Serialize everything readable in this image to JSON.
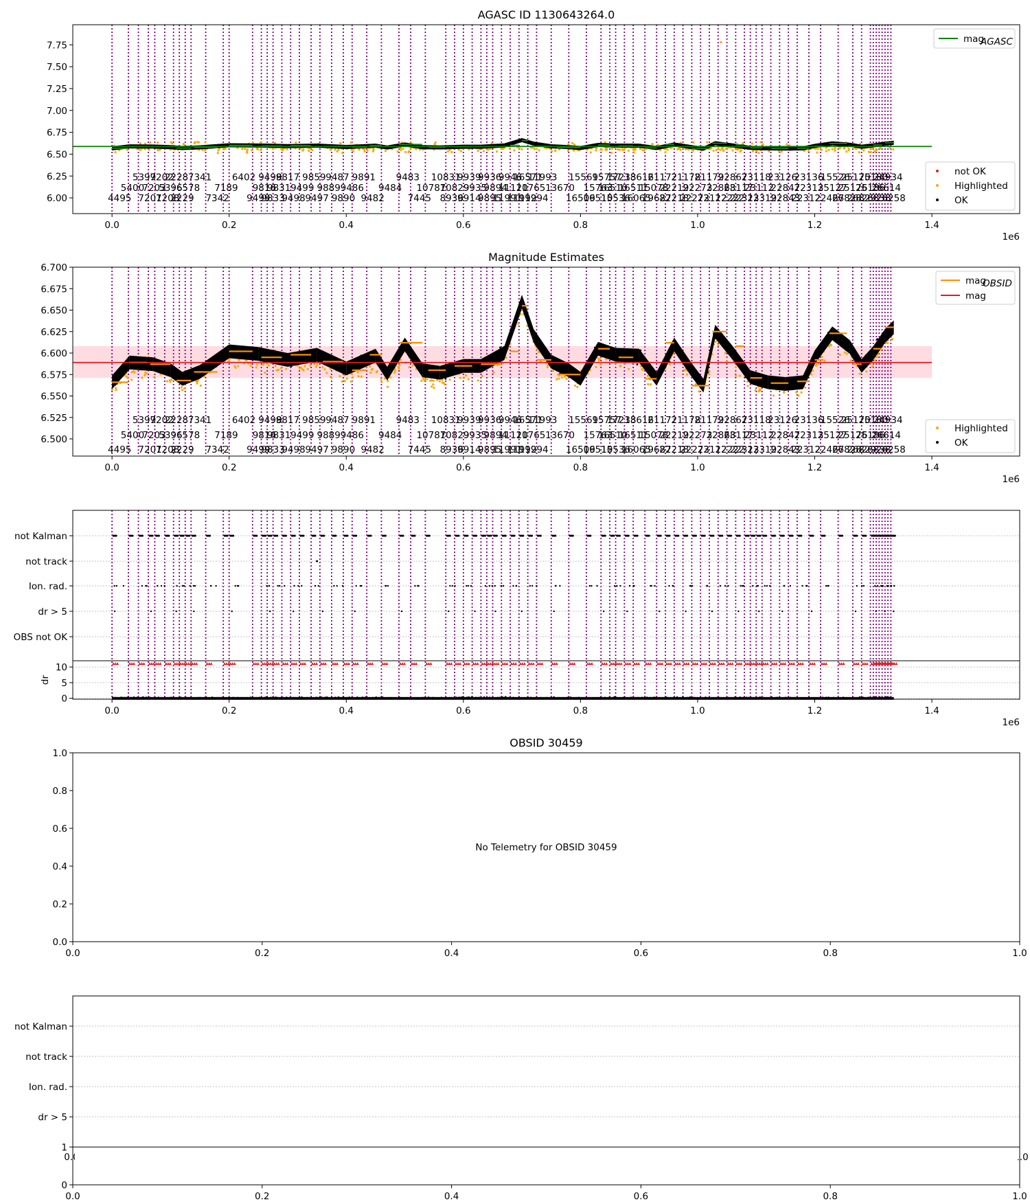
{
  "figure": {
    "background": "#ffffff"
  },
  "colors": {
    "obsid_line": "#800080",
    "mag_agasc": "#008000",
    "mag_obsid": "#ff8c00",
    "mag_mean": "#e41a1c",
    "band": "#ffc0cb",
    "not_ok": "#e41a1c",
    "highlighted": "#ffa500",
    "ok": "#000000",
    "grid": "#b0b0b0"
  },
  "obsid_x": [
    0,
    0.028,
    0.045,
    0.062,
    0.073,
    0.09,
    0.105,
    0.115,
    0.125,
    0.135,
    0.16,
    0.19,
    0.2,
    0.24,
    0.255,
    0.265,
    0.275,
    0.29,
    0.305,
    0.32,
    0.34,
    0.355,
    0.375,
    0.395,
    0.41,
    0.435,
    0.46,
    0.49,
    0.51,
    0.535,
    0.57,
    0.585,
    0.6,
    0.615,
    0.63,
    0.64,
    0.65,
    0.665,
    0.68,
    0.695,
    0.71,
    0.725,
    0.75,
    0.78,
    0.81,
    0.835,
    0.85,
    0.86,
    0.875,
    0.89,
    0.91,
    0.93,
    0.945,
    0.96,
    0.975,
    0.99,
    1.005,
    1.02,
    1.035,
    1.05,
    1.065,
    1.08,
    1.09,
    1.1,
    1.11,
    1.125,
    1.14,
    1.155,
    1.17,
    1.19,
    1.21,
    1.24,
    1.265,
    1.28,
    1.295,
    1.3,
    1.305,
    1.31,
    1.315,
    1.32,
    1.325,
    1.33
  ],
  "obsid_labels": {
    "row1": [
      {
        "x": 0.055,
        "t": "5399"
      },
      {
        "x": 0.085,
        "t": "7202"
      },
      {
        "x": 0.11,
        "t": "2228"
      },
      {
        "x": 0.15,
        "t": "7341"
      },
      {
        "x": 0.225,
        "t": "6402"
      },
      {
        "x": 0.27,
        "t": "9498"
      },
      {
        "x": 0.3,
        "t": "9817"
      },
      {
        "x": 0.345,
        "t": "9859"
      },
      {
        "x": 0.385,
        "t": "9487"
      },
      {
        "x": 0.43,
        "t": "9891"
      },
      {
        "x": 0.505,
        "t": "9483"
      },
      {
        "x": 0.57,
        "t": "10831"
      },
      {
        "x": 0.61,
        "t": "9939"
      },
      {
        "x": 0.645,
        "t": "9936"
      },
      {
        "x": 0.68,
        "t": "9946"
      },
      {
        "x": 0.71,
        "t": "16571"
      },
      {
        "x": 0.735,
        "t": "11993"
      },
      {
        "x": 0.805,
        "t": "15569"
      },
      {
        "x": 0.845,
        "t": "15757"
      },
      {
        "x": 0.87,
        "t": "17233"
      },
      {
        "x": 0.9,
        "t": "18616"
      },
      {
        "x": 0.94,
        "t": "21172"
      },
      {
        "x": 0.98,
        "t": "21178"
      },
      {
        "x": 1.02,
        "t": "21179"
      },
      {
        "x": 1.06,
        "t": "22867"
      },
      {
        "x": 1.1,
        "t": "23118"
      },
      {
        "x": 1.145,
        "t": "23126"
      },
      {
        "x": 1.19,
        "t": "23136"
      },
      {
        "x": 1.235,
        "t": "15526"
      },
      {
        "x": 1.27,
        "t": "25170"
      },
      {
        "x": 1.3,
        "t": "25180"
      },
      {
        "x": 1.325,
        "t": "24934"
      }
    ],
    "row2": [
      {
        "x": 0.035,
        "t": "5400"
      },
      {
        "x": 0.072,
        "t": "7203"
      },
      {
        "x": 0.1,
        "t": "5396"
      },
      {
        "x": 0.13,
        "t": "6578"
      },
      {
        "x": 0.195,
        "t": "7189"
      },
      {
        "x": 0.26,
        "t": "9816"
      },
      {
        "x": 0.285,
        "t": "9831"
      },
      {
        "x": 0.325,
        "t": "9499"
      },
      {
        "x": 0.37,
        "t": "9889"
      },
      {
        "x": 0.41,
        "t": "9486"
      },
      {
        "x": 0.475,
        "t": "9484"
      },
      {
        "x": 0.545,
        "t": "10787"
      },
      {
        "x": 0.585,
        "t": "10829"
      },
      {
        "x": 0.62,
        "t": "9935"
      },
      {
        "x": 0.655,
        "t": "9894"
      },
      {
        "x": 0.685,
        "t": "11120"
      },
      {
        "x": 0.715,
        "t": "11765"
      },
      {
        "x": 0.765,
        "t": "13670"
      },
      {
        "x": 0.83,
        "t": "15763"
      },
      {
        "x": 0.855,
        "t": "16510"
      },
      {
        "x": 0.89,
        "t": "16511"
      },
      {
        "x": 0.925,
        "t": "15078"
      },
      {
        "x": 0.96,
        "t": "22219"
      },
      {
        "x": 1.0,
        "t": "22273"
      },
      {
        "x": 1.04,
        "t": "22868"
      },
      {
        "x": 1.07,
        "t": "23117"
      },
      {
        "x": 1.105,
        "t": "23112"
      },
      {
        "x": 1.15,
        "t": "22847"
      },
      {
        "x": 1.19,
        "t": "22313"
      },
      {
        "x": 1.23,
        "t": "25127"
      },
      {
        "x": 1.265,
        "t": "25176"
      },
      {
        "x": 1.295,
        "t": "25186"
      },
      {
        "x": 1.322,
        "t": "26614"
      }
    ],
    "row3": [
      {
        "x": 0.013,
        "t": "4495"
      },
      {
        "x": 0.065,
        "t": "7201"
      },
      {
        "x": 0.095,
        "t": "7208"
      },
      {
        "x": 0.12,
        "t": "2229"
      },
      {
        "x": 0.18,
        "t": "7342"
      },
      {
        "x": 0.25,
        "t": "9499"
      },
      {
        "x": 0.275,
        "t": "9833"
      },
      {
        "x": 0.31,
        "t": "9498"
      },
      {
        "x": 0.35,
        "t": "9497"
      },
      {
        "x": 0.395,
        "t": "9890"
      },
      {
        "x": 0.445,
        "t": "9482"
      },
      {
        "x": 0.525,
        "t": "7445"
      },
      {
        "x": 0.58,
        "t": "8936"
      },
      {
        "x": 0.61,
        "t": "9914"
      },
      {
        "x": 0.645,
        "t": "9895"
      },
      {
        "x": 0.675,
        "t": "11991"
      },
      {
        "x": 0.7,
        "t": "11992"
      },
      {
        "x": 0.72,
        "t": "11994"
      },
      {
        "x": 0.8,
        "t": "16509"
      },
      {
        "x": 0.83,
        "t": "16510"
      },
      {
        "x": 0.86,
        "t": "15536"
      },
      {
        "x": 0.895,
        "t": "16065"
      },
      {
        "x": 0.93,
        "t": "19687"
      },
      {
        "x": 0.96,
        "t": "22218"
      },
      {
        "x": 0.995,
        "t": "22273"
      },
      {
        "x": 1.025,
        "t": "22112"
      },
      {
        "x": 1.055,
        "t": "22222"
      },
      {
        "x": 1.08,
        "t": "22313"
      },
      {
        "x": 1.11,
        "t": "22319"
      },
      {
        "x": 1.15,
        "t": "22843"
      },
      {
        "x": 1.185,
        "t": "22312"
      },
      {
        "x": 1.225,
        "t": "22467"
      },
      {
        "x": 1.255,
        "t": "26828"
      },
      {
        "x": 1.28,
        "t": "26829"
      },
      {
        "x": 1.305,
        "t": "26838"
      },
      {
        "x": 1.33,
        "t": "26258"
      }
    ]
  },
  "chart_data": [
    {
      "type": "scatter",
      "title": "AGASC ID 1130643264.0",
      "x_scale_label": "1e6",
      "xlim": [
        -0.067,
        1.55
      ],
      "ylim": [
        5.82,
        7.98
      ],
      "xticks": [
        {
          "v": 0.0,
          "t": "0.0"
        },
        {
          "v": 0.2,
          "t": "0.2"
        },
        {
          "v": 0.4,
          "t": "0.4"
        },
        {
          "v": 0.6,
          "t": "0.6"
        },
        {
          "v": 0.8,
          "t": "0.8"
        },
        {
          "v": 1.0,
          "t": "1.0"
        },
        {
          "v": 1.2,
          "t": "1.2"
        },
        {
          "v": 1.4,
          "t": "1.4"
        }
      ],
      "yticks": [
        {
          "v": 6.0,
          "t": "6.00"
        },
        {
          "v": 6.25,
          "t": "6.25"
        },
        {
          "v": 6.5,
          "t": "6.50"
        },
        {
          "v": 6.75,
          "t": "6.75"
        },
        {
          "v": 7.0,
          "t": "7.00"
        },
        {
          "v": 7.25,
          "t": "7.25"
        },
        {
          "v": 7.5,
          "t": "7.50"
        },
        {
          "v": 7.75,
          "t": "7.75"
        }
      ],
      "mag_agasc": 6.588,
      "outlier": {
        "x": 1.04,
        "y": 7.78
      },
      "legend_top": [
        {
          "label": "mag",
          "sub": "AGASC"
        }
      ],
      "legend_bottom": [
        "not OK",
        "Highlighted",
        "OK"
      ]
    },
    {
      "type": "scatter",
      "title": "Magnitude Estimates",
      "x_scale_label": "1e6",
      "xlim": [
        -0.067,
        1.55
      ],
      "ylim": [
        6.48,
        6.7
      ],
      "xticks": [
        {
          "v": 0.0,
          "t": "0.0"
        },
        {
          "v": 0.2,
          "t": "0.2"
        },
        {
          "v": 0.4,
          "t": "0.4"
        },
        {
          "v": 0.6,
          "t": "0.6"
        },
        {
          "v": 0.8,
          "t": "0.8"
        },
        {
          "v": 1.0,
          "t": "1.0"
        },
        {
          "v": 1.2,
          "t": "1.2"
        },
        {
          "v": 1.4,
          "t": "1.4"
        }
      ],
      "yticks": [
        {
          "v": 6.5,
          "t": "6.500"
        },
        {
          "v": 6.525,
          "t": "6.525"
        },
        {
          "v": 6.55,
          "t": "6.550"
        },
        {
          "v": 6.575,
          "t": "6.575"
        },
        {
          "v": 6.6,
          "t": "6.600"
        },
        {
          "v": 6.625,
          "t": "6.625"
        },
        {
          "v": 6.65,
          "t": "6.650"
        },
        {
          "v": 6.675,
          "t": "6.675"
        },
        {
          "v": 6.7,
          "t": "6.700"
        }
      ],
      "mag": 6.589,
      "band": [
        6.571,
        6.608
      ],
      "legend_top": [
        {
          "label": "mag",
          "sub": "OBSID"
        },
        {
          "label": "mag",
          "sub": ""
        }
      ],
      "legend_bottom": [
        "Highlighted",
        "OK"
      ],
      "mag_profile": [
        [
          0.0,
          6.566
        ],
        [
          0.03,
          6.589
        ],
        [
          0.07,
          6.587
        ],
        [
          0.1,
          6.58
        ],
        [
          0.12,
          6.57
        ],
        [
          0.15,
          6.578
        ],
        [
          0.2,
          6.602
        ],
        [
          0.25,
          6.599
        ],
        [
          0.3,
          6.592
        ],
        [
          0.35,
          6.598
        ],
        [
          0.4,
          6.582
        ],
        [
          0.45,
          6.597
        ],
        [
          0.47,
          6.576
        ],
        [
          0.5,
          6.61
        ],
        [
          0.53,
          6.58
        ],
        [
          0.56,
          6.577
        ],
        [
          0.6,
          6.585
        ],
        [
          0.63,
          6.585
        ],
        [
          0.67,
          6.6
        ],
        [
          0.7,
          6.66
        ],
        [
          0.72,
          6.62
        ],
        [
          0.75,
          6.59
        ],
        [
          0.78,
          6.58
        ],
        [
          0.8,
          6.57
        ],
        [
          0.83,
          6.605
        ],
        [
          0.86,
          6.598
        ],
        [
          0.9,
          6.597
        ],
        [
          0.93,
          6.57
        ],
        [
          0.96,
          6.61
        ],
        [
          0.99,
          6.58
        ],
        [
          1.01,
          6.562
        ],
        [
          1.03,
          6.625
        ],
        [
          1.06,
          6.6
        ],
        [
          1.09,
          6.572
        ],
        [
          1.12,
          6.566
        ],
        [
          1.15,
          6.564
        ],
        [
          1.18,
          6.566
        ],
        [
          1.2,
          6.595
        ],
        [
          1.23,
          6.623
        ],
        [
          1.26,
          6.607
        ],
        [
          1.28,
          6.585
        ],
        [
          1.3,
          6.6
        ],
        [
          1.32,
          6.62
        ],
        [
          1.335,
          6.63
        ]
      ],
      "mag_obsid_segments": [
        [
          0.0,
          0.028,
          6.566
        ],
        [
          0.03,
          0.06,
          6.589
        ],
        [
          0.065,
          0.1,
          6.587
        ],
        [
          0.11,
          0.135,
          6.568
        ],
        [
          0.14,
          0.18,
          6.578
        ],
        [
          0.2,
          0.24,
          6.602
        ],
        [
          0.255,
          0.29,
          6.595
        ],
        [
          0.305,
          0.34,
          6.598
        ],
        [
          0.36,
          0.395,
          6.59
        ],
        [
          0.41,
          0.435,
          6.58
        ],
        [
          0.44,
          0.46,
          6.598
        ],
        [
          0.49,
          0.53,
          6.612
        ],
        [
          0.54,
          0.57,
          6.58
        ],
        [
          0.585,
          0.615,
          6.585
        ],
        [
          0.63,
          0.665,
          6.587
        ],
        [
          0.68,
          0.695,
          6.602
        ],
        [
          0.7,
          0.71,
          6.655
        ],
        [
          0.725,
          0.75,
          6.592
        ],
        [
          0.76,
          0.8,
          6.575
        ],
        [
          0.83,
          0.85,
          6.605
        ],
        [
          0.865,
          0.89,
          6.595
        ],
        [
          0.91,
          0.93,
          6.57
        ],
        [
          0.945,
          0.96,
          6.612
        ],
        [
          0.99,
          1.02,
          6.562
        ],
        [
          1.025,
          1.05,
          6.625
        ],
        [
          1.065,
          1.08,
          6.608
        ],
        [
          1.09,
          1.11,
          6.571
        ],
        [
          1.125,
          1.155,
          6.565
        ],
        [
          1.17,
          1.19,
          6.567
        ],
        [
          1.2,
          1.215,
          6.592
        ],
        [
          1.225,
          1.255,
          6.623
        ],
        [
          1.265,
          1.28,
          6.587
        ],
        [
          1.3,
          1.315,
          6.605
        ],
        [
          1.32,
          1.335,
          6.63
        ]
      ]
    },
    {
      "type": "scatter",
      "title": "",
      "x_scale_label": "1e6",
      "xlim": [
        -0.067,
        1.55
      ],
      "flag_labels": [
        "not Kalman",
        "not track",
        "Ion. rad.",
        "dr > 5",
        "OBS not OK"
      ],
      "dr_ylim": [
        -0.3,
        12
      ],
      "dr_yticks": [
        {
          "v": 0,
          "t": "0"
        },
        {
          "v": 5,
          "t": "5"
        },
        {
          "v": 10,
          "t": "10"
        }
      ],
      "dr_label": "dr",
      "xticks": [
        {
          "v": 0.0,
          "t": "0.0"
        },
        {
          "v": 0.2,
          "t": "0.2"
        },
        {
          "v": 0.4,
          "t": "0.4"
        },
        {
          "v": 0.6,
          "t": "0.6"
        },
        {
          "v": 0.8,
          "t": "0.8"
        },
        {
          "v": 1.0,
          "t": "1.0"
        },
        {
          "v": 1.2,
          "t": "1.2"
        },
        {
          "v": 1.4,
          "t": "1.4"
        }
      ]
    },
    {
      "type": "scatter",
      "title": "OBSID 30459",
      "annotation": "No Telemetry for OBSID 30459",
      "xlim": [
        0,
        1
      ],
      "ylim": [
        0,
        1
      ],
      "xticks": [
        {
          "v": 0.0,
          "t": "0.0"
        },
        {
          "v": 0.2,
          "t": "0.2"
        },
        {
          "v": 0.4,
          "t": "0.4"
        },
        {
          "v": 0.6,
          "t": "0.6"
        },
        {
          "v": 0.8,
          "t": "0.8"
        },
        {
          "v": 1.0,
          "t": "1.0"
        }
      ],
      "yticks": [
        {
          "v": 0.0,
          "t": "0.0"
        },
        {
          "v": 0.2,
          "t": "0.2"
        },
        {
          "v": 0.4,
          "t": "0.4"
        },
        {
          "v": 0.6,
          "t": "0.6"
        },
        {
          "v": 0.8,
          "t": "0.8"
        },
        {
          "v": 1.0,
          "t": "1.0"
        }
      ]
    },
    {
      "type": "scatter",
      "title": "",
      "flag_labels": [
        "not Kalman",
        "not track",
        "Ion. rad.",
        "dr > 5"
      ],
      "upper_yticks": [
        {
          "v": 1,
          "t": "1"
        }
      ],
      "upper_xticks": [
        {
          "v": 0.0,
          "t": "0.0"
        },
        {
          "v": 1.0,
          "t": "1.0"
        }
      ],
      "xlim": [
        0,
        1
      ],
      "ylim": [
        0,
        1
      ],
      "xticks": [
        {
          "v": 0.0,
          "t": "0.0"
        },
        {
          "v": 0.2,
          "t": "0.2"
        },
        {
          "v": 0.4,
          "t": "0.4"
        },
        {
          "v": 0.6,
          "t": "0.6"
        },
        {
          "v": 0.8,
          "t": "0.8"
        },
        {
          "v": 1.0,
          "t": "1.0"
        }
      ],
      "yticks": [
        {
          "v": 0,
          "t": "0"
        }
      ]
    }
  ]
}
